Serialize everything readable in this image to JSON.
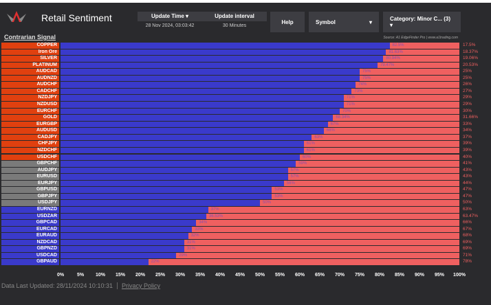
{
  "header": {
    "title": "Retail Sentiment",
    "update_time_label": "Update Time ▾",
    "update_interval_label": "Update interval",
    "update_time": "28 Nov 2024, 03:03:42",
    "update_interval": "30 Minutes",
    "help": "Help",
    "symbol": "Symbol",
    "symbol_caret": "▾",
    "category": "Category: Minor C... (3) ▾"
  },
  "signal_title": "Contrarian Signal",
  "source": "Source: A1 EdgeFinder Pro | www.a1trading.com",
  "colors": {
    "long": "#3a3acb",
    "short": "#ef6060",
    "contrarian_short": "#e0400f",
    "neutral": "#7a7a7a",
    "contrarian_long": "#3a3acb"
  },
  "chart_data": {
    "type": "bar",
    "stacked": true,
    "xlim": [
      0,
      100
    ],
    "ticks": [
      "0%",
      "5%",
      "10%",
      "15%",
      "20%",
      "25%",
      "30%",
      "35%",
      "40%",
      "45%",
      "50%",
      "55%",
      "60%",
      "65%",
      "70%",
      "75%",
      "80%",
      "85%",
      "90%",
      "95%",
      "100%"
    ],
    "rows": [
      {
        "symbol": "COPPER",
        "long": "82.5%",
        "short": "17.5%",
        "lv": 82.5,
        "signal": "sell"
      },
      {
        "symbol": "Iron Ore",
        "long": "81.63%",
        "short": "18.37%",
        "lv": 81.63,
        "signal": "sell"
      },
      {
        "symbol": "SILVER",
        "long": "80.94%",
        "short": "19.06%",
        "lv": 80.94,
        "signal": "sell"
      },
      {
        "symbol": "PLATINUM",
        "long": "79.47%",
        "short": "20.53%",
        "lv": 79.47,
        "signal": "sell"
      },
      {
        "symbol": "AUDCAD",
        "long": "75%",
        "short": "25%",
        "lv": 75,
        "signal": "sell"
      },
      {
        "symbol": "AUDNZD",
        "long": "75%",
        "short": "25%",
        "lv": 75,
        "signal": "sell"
      },
      {
        "symbol": "AUDCHF",
        "long": "74%",
        "short": "26%",
        "lv": 74,
        "signal": "sell"
      },
      {
        "symbol": "CADCHF",
        "long": "73%",
        "short": "27%",
        "lv": 73,
        "signal": "sell"
      },
      {
        "symbol": "NZDJPY",
        "long": "71%",
        "short": "29%",
        "lv": 71,
        "signal": "sell"
      },
      {
        "symbol": "NZDUSD",
        "long": "71%",
        "short": "29%",
        "lv": 71,
        "signal": "sell"
      },
      {
        "symbol": "EURCHF",
        "long": "70%",
        "short": "30%",
        "lv": 70,
        "signal": "sell"
      },
      {
        "symbol": "GOLD",
        "long": "68.34%",
        "short": "31.66%",
        "lv": 68.34,
        "signal": "sell"
      },
      {
        "symbol": "EURGBP",
        "long": "67%",
        "short": "33%",
        "lv": 67,
        "signal": "sell"
      },
      {
        "symbol": "AUDUSD",
        "long": "66%",
        "short": "34%",
        "lv": 66,
        "signal": "sell"
      },
      {
        "symbol": "CADJPY",
        "long": "63%",
        "short": "37%",
        "lv": 63,
        "signal": "sell"
      },
      {
        "symbol": "CHFJPY",
        "long": "61%",
        "short": "39%",
        "lv": 61,
        "signal": "sell"
      },
      {
        "symbol": "NZDCHF",
        "long": "61%",
        "short": "39%",
        "lv": 61,
        "signal": "sell"
      },
      {
        "symbol": "USDCHF",
        "long": "60%",
        "short": "40%",
        "lv": 60,
        "signal": "sell"
      },
      {
        "symbol": "GBPCHF",
        "long": "59%",
        "short": "41%",
        "lv": 59,
        "signal": "neutral"
      },
      {
        "symbol": "AUDJPY",
        "long": "57%",
        "short": "43%",
        "lv": 57,
        "signal": "neutral"
      },
      {
        "symbol": "EURUSD",
        "long": "57%",
        "short": "43%",
        "lv": 57,
        "signal": "neutral"
      },
      {
        "symbol": "EURJPY",
        "long": "56%",
        "short": "44%",
        "lv": 56,
        "signal": "neutral"
      },
      {
        "symbol": "GBPUSD",
        "long": "53%",
        "short": "47%",
        "lv": 53,
        "signal": "neutral"
      },
      {
        "symbol": "GBPJPY",
        "long": "53%",
        "short": "47%",
        "lv": 53,
        "signal": "neutral"
      },
      {
        "symbol": "USDJPY",
        "long": "50%",
        "short": "50%",
        "lv": 50,
        "signal": "neutral"
      },
      {
        "symbol": "EURNZD",
        "long": "37%",
        "short": "63%",
        "lv": 37,
        "signal": "buy"
      },
      {
        "symbol": "USDZAR",
        "long": "36.53%",
        "short": "63.47%",
        "lv": 36.53,
        "signal": "buy"
      },
      {
        "symbol": "GBPCAD",
        "long": "34%",
        "short": "66%",
        "lv": 34,
        "signal": "buy"
      },
      {
        "symbol": "EURCAD",
        "long": "33%",
        "short": "67%",
        "lv": 33,
        "signal": "buy"
      },
      {
        "symbol": "EURAUD",
        "long": "32%",
        "short": "68%",
        "lv": 32,
        "signal": "buy"
      },
      {
        "symbol": "NZDCAD",
        "long": "31%",
        "short": "69%",
        "lv": 31,
        "signal": "buy"
      },
      {
        "symbol": "GBPNZD",
        "long": "31%",
        "short": "69%",
        "lv": 31,
        "signal": "buy"
      },
      {
        "symbol": "USDCAD",
        "long": "29%",
        "short": "71%",
        "lv": 29,
        "signal": "buy"
      },
      {
        "symbol": "GBPAUD",
        "long": "22%",
        "short": "78%",
        "lv": 22,
        "signal": "buy"
      }
    ]
  },
  "footer": {
    "updated": "Data Last Updated: 28/11/2024 10:10:31",
    "privacy": "Privacy Policy"
  }
}
